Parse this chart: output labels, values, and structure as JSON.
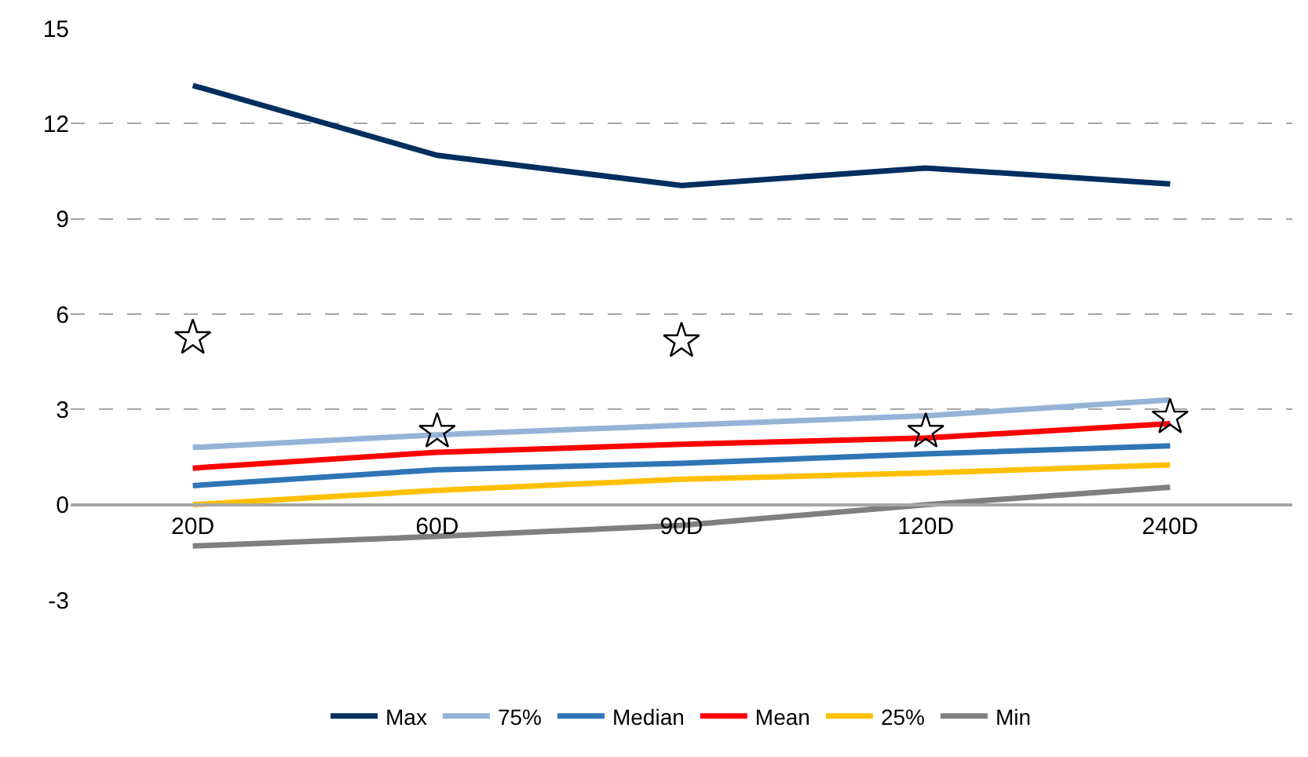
{
  "chart_data": {
    "type": "line",
    "categories": [
      "20D",
      "60D",
      "90D",
      "120D",
      "240D"
    ],
    "series": [
      {
        "name": "Max",
        "color": "#002f5f",
        "values": [
          13.2,
          11.0,
          10.05,
          10.6,
          10.1
        ]
      },
      {
        "name": "75%",
        "color": "#95b3d7",
        "values": [
          1.8,
          2.2,
          2.5,
          2.8,
          3.3
        ]
      },
      {
        "name": "Median",
        "color": "#2e75b6",
        "values": [
          0.6,
          1.1,
          1.3,
          1.6,
          1.85
        ]
      },
      {
        "name": "Mean",
        "color": "#ff0000",
        "values": [
          1.15,
          1.65,
          1.9,
          2.1,
          2.55
        ]
      },
      {
        "name": "25%",
        "color": "#ffc000",
        "values": [
          0.0,
          0.45,
          0.8,
          1.0,
          1.25
        ]
      },
      {
        "name": "Min",
        "color": "#7f7f7f",
        "values": [
          -1.3,
          -1.0,
          -0.65,
          0.0,
          0.55
        ]
      },
      {
        "type": "scatter",
        "marker": "star",
        "color": "#000000",
        "values": [
          5.25,
          2.3,
          5.15,
          2.3,
          2.75
        ]
      }
    ],
    "ylim": [
      -3,
      15
    ],
    "yticks": [
      -3,
      0,
      3,
      6,
      9,
      12,
      15
    ],
    "grid": "y",
    "legend": "bottom",
    "line_style": "solid",
    "marker": "none"
  }
}
